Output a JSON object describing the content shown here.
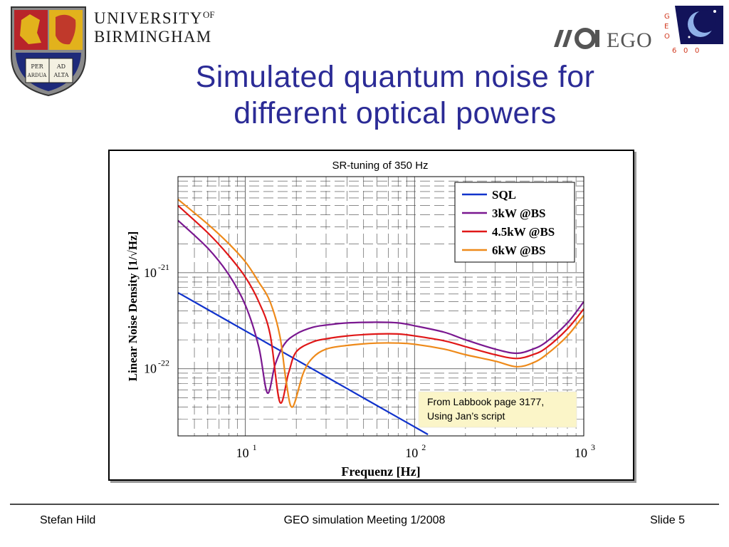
{
  "header": {
    "university_line1": "UNIVERSITY",
    "university_of": "OF",
    "university_line2": "BIRMINGHAM",
    "crest_text": [
      "PER",
      "AD",
      "ARDUA",
      "ALTA"
    ],
    "ego_logo_text": "EGO",
    "geo_logo_letters": [
      "G",
      "E",
      "O",
      "6",
      "0",
      "0"
    ]
  },
  "slide": {
    "title_line1": "Simulated quantum noise for",
    "title_line2": "different optical powers"
  },
  "chart_data": {
    "type": "line",
    "title": "SR-tuning of 350 Hz",
    "xlabel": "Frequenz [Hz]",
    "ylabel": "Linear Noise Density [1/√Hz]",
    "x_scale": "log",
    "y_scale": "log",
    "xlim": [
      4,
      1000
    ],
    "ylim": [
      2e-23,
      1e-20
    ],
    "x_ticks": [
      {
        "value": 10,
        "base": "10",
        "exp": "1"
      },
      {
        "value": 100,
        "base": "10",
        "exp": "2"
      },
      {
        "value": 1000,
        "base": "10",
        "exp": "3"
      }
    ],
    "y_ticks": [
      {
        "value": 1e-21,
        "base": "10",
        "exp": "-21"
      },
      {
        "value": 1e-22,
        "base": "10",
        "exp": "-22"
      }
    ],
    "grid": true,
    "legend_position": "top-right",
    "annotation": [
      "From Labbook page 3177,",
      "Using Jan’s script"
    ],
    "series": [
      {
        "name": "SQL",
        "color": "#1133cc",
        "x": [
          4,
          8,
          12,
          20,
          40,
          80,
          120
        ],
        "y": [
          6.2e-22,
          3.1e-22,
          2.07e-22,
          1.24e-22,
          6.2e-23,
          3.1e-23,
          2.07e-23
        ]
      },
      {
        "name": "3kW @BS",
        "color": "#7a1890",
        "x": [
          4,
          6,
          8,
          10,
          12,
          13.5,
          15,
          17,
          20,
          25,
          30,
          40,
          60,
          80,
          100,
          150,
          200,
          300,
          400,
          500,
          600,
          800,
          1000
        ],
        "y": [
          3.5e-21,
          1.8e-21,
          9.5e-22,
          4.6e-22,
          1.7e-22,
          5.6e-23,
          1.1e-22,
          1.8e-22,
          2.3e-22,
          2.7e-22,
          2.85e-22,
          3e-22,
          3.05e-22,
          3e-22,
          2.8e-22,
          2.4e-22,
          2e-22,
          1.6e-22,
          1.45e-22,
          1.6e-22,
          1.9e-22,
          3e-22,
          5e-22
        ]
      },
      {
        "name": "4.5kW @BS",
        "color": "#e01818",
        "x": [
          4,
          6,
          8,
          10,
          12,
          14,
          16,
          18,
          20,
          25,
          30,
          40,
          60,
          80,
          100,
          150,
          200,
          300,
          400,
          500,
          600,
          800,
          1000
        ],
        "y": [
          5e-21,
          2.6e-21,
          1.5e-21,
          9e-22,
          5e-22,
          2.3e-22,
          4.5e-23,
          9e-23,
          1.5e-22,
          1.9e-22,
          2.05e-22,
          2.2e-22,
          2.3e-22,
          2.3e-22,
          2.2e-22,
          1.95e-22,
          1.7e-22,
          1.4e-22,
          1.28e-22,
          1.4e-22,
          1.65e-22,
          2.6e-22,
          4.2e-22
        ]
      },
      {
        "name": "6kW @BS",
        "color": "#ee8a1a",
        "x": [
          4,
          6,
          8,
          10,
          12,
          14,
          16,
          17.5,
          19,
          22,
          25,
          30,
          40,
          60,
          80,
          100,
          150,
          200,
          300,
          400,
          500,
          600,
          800,
          1000
        ],
        "y": [
          5.8e-21,
          3.2e-21,
          2e-21,
          1.3e-21,
          8e-22,
          5e-22,
          2.2e-22,
          7e-23,
          4e-23,
          9e-23,
          1.3e-22,
          1.6e-22,
          1.75e-22,
          1.85e-22,
          1.85e-22,
          1.8e-22,
          1.6e-22,
          1.4e-22,
          1.2e-22,
          1.05e-22,
          1.15e-22,
          1.4e-22,
          2.2e-22,
          3.6e-22
        ]
      }
    ]
  },
  "footer": {
    "author": "Stefan Hild",
    "event": "GEO simulation Meeting 1/2008",
    "slide_number": "Slide 5"
  }
}
